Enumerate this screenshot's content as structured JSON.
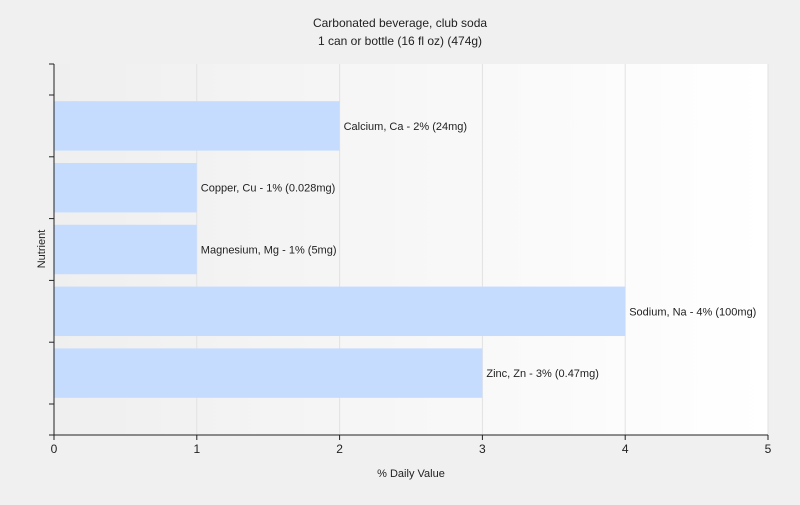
{
  "chart_data": {
    "type": "bar",
    "orientation": "horizontal",
    "title": "Carbonated beverage, club soda",
    "subtitle": "1 can or bottle (16 fl oz) (474g)",
    "xlabel": "% Daily Value",
    "ylabel": "Nutrient",
    "xlim": [
      0,
      5
    ],
    "xticks": [
      "0",
      "1",
      "2",
      "3",
      "4",
      "5"
    ],
    "grid": true,
    "legend": "none",
    "bar_color": "#c6dcff",
    "categories": [
      "Calcium, Ca",
      "Copper, Cu",
      "Magnesium, Mg",
      "Sodium, Na",
      "Zinc, Zn"
    ],
    "values": [
      2,
      1,
      1,
      4,
      3
    ],
    "data_labels": [
      "Calcium, Ca - 2% (24mg)",
      "Copper, Cu - 1% (0.028mg)",
      "Magnesium, Mg - 1% (5mg)",
      "Sodium, Na - 4% (100mg)",
      "Zinc, Zn - 3% (0.47mg)"
    ]
  }
}
